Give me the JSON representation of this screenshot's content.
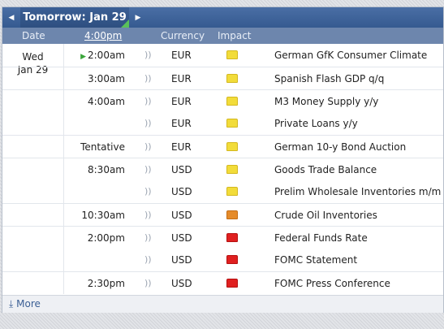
{
  "nav": {
    "prev_icon": "◀",
    "next_icon": "▶",
    "day_label": "Tomorrow: Jan 29"
  },
  "columns": {
    "date": "Date",
    "time": "4:00pm",
    "currency": "Currency",
    "impact": "Impact"
  },
  "date_cell": {
    "weekday": "Wed",
    "date": "Jan 29"
  },
  "events": [
    {
      "time": "2:00am",
      "playing": true,
      "currency": "EUR",
      "impact": "low",
      "event": "German GfK Consumer Climate"
    },
    {
      "time": "3:00am",
      "playing": false,
      "currency": "EUR",
      "impact": "low",
      "event": "Spanish Flash GDP q/q"
    },
    {
      "time": "4:00am",
      "playing": false,
      "currency": "EUR",
      "impact": "low",
      "event": "M3 Money Supply y/y"
    },
    {
      "time": "",
      "playing": false,
      "currency": "EUR",
      "impact": "low",
      "event": "Private Loans y/y"
    },
    {
      "time": "Tentative",
      "playing": false,
      "currency": "EUR",
      "impact": "low",
      "event": "German 10-y Bond Auction"
    },
    {
      "time": "8:30am",
      "playing": false,
      "currency": "USD",
      "impact": "low",
      "event": "Goods Trade Balance"
    },
    {
      "time": "",
      "playing": false,
      "currency": "USD",
      "impact": "low",
      "event": "Prelim Wholesale Inventories m/m"
    },
    {
      "time": "10:30am",
      "playing": false,
      "currency": "USD",
      "impact": "medium",
      "event": "Crude Oil Inventories"
    },
    {
      "time": "2:00pm",
      "playing": false,
      "currency": "USD",
      "impact": "high",
      "event": "Federal Funds Rate"
    },
    {
      "time": "",
      "playing": false,
      "currency": "USD",
      "impact": "high",
      "event": "FOMC Statement"
    },
    {
      "time": "2:30pm",
      "playing": false,
      "currency": "USD",
      "impact": "high",
      "event": "FOMC Press Conference"
    }
  ],
  "footer": {
    "more_label": "More",
    "more_icon": "⤓"
  },
  "colors": {
    "header_blue": "#3b5f95",
    "impact_low": "#f2dc3a",
    "impact_medium": "#e58b2a",
    "impact_high": "#e02020"
  }
}
